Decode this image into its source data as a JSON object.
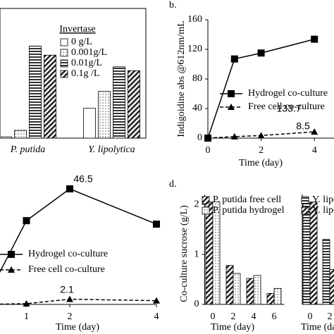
{
  "chart_data": [
    {
      "type": "bar",
      "categories": [
        "P. putida",
        "Y. lipolytica"
      ],
      "legend_title": "Invertase",
      "ylim": [
        0,
        100
      ],
      "series": [
        {
          "name": "0 g/L",
          "color": "#000000",
          "pattern": "none",
          "values": [
            1,
            23
          ]
        },
        {
          "name": "0.001g/L",
          "color": "#000000",
          "pattern": "dots",
          "values": [
            6,
            36
          ]
        },
        {
          "name": "0.01g/L",
          "color": "#000000",
          "pattern": "horizontal",
          "values": [
            71,
            55
          ]
        },
        {
          "name": "0.1g /L",
          "color": "#000000",
          "pattern": "diagonal",
          "values": [
            64,
            52
          ]
        }
      ]
    },
    {
      "type": "line",
      "panel_label": "b.",
      "ylabel": "Indigoidine abs @612nm/mL",
      "xlabel": "Time (day)",
      "x": [
        0,
        1,
        2,
        4
      ],
      "xlim": [
        0,
        5
      ],
      "xticks": [
        0,
        2,
        4
      ],
      "ylim": [
        0,
        160
      ],
      "yticks": [
        0,
        40,
        80,
        120,
        160
      ],
      "series": [
        {
          "name": "Hydrogel co-culture",
          "color": "#000000",
          "marker": "square",
          "dash": false,
          "labeled_index": 3,
          "values": [
            0,
            107,
            115,
            133.7
          ]
        },
        {
          "name": "Free cell co-culture",
          "color": "#000000",
          "marker": "triangle",
          "dash": true,
          "labeled_index": 3,
          "values": [
            0,
            2,
            3.5,
            8.5
          ]
        }
      ]
    },
    {
      "type": "line",
      "xlabel": "Time (day)",
      "x": [
        0,
        1,
        2,
        4
      ],
      "xlim": [
        0,
        4
      ],
      "xticks": [
        1,
        2,
        4
      ],
      "ylim": [
        0,
        57
      ],
      "series": [
        {
          "name": "Hydrogel co-culture",
          "color": "#000000",
          "marker": "square",
          "dash": false,
          "labeled_index": 2,
          "values": [
            0,
            33.7,
            46.5,
            32.3
          ]
        },
        {
          "name": "Free cell co-culture",
          "color": "#000000",
          "marker": "triangle",
          "dash": true,
          "labeled_index": 2,
          "values": [
            0,
            0.3,
            2.1,
            1.5
          ]
        }
      ]
    },
    {
      "type": "bar",
      "panel_label": "d.",
      "ylabel": "Co-culture sucrose (g/L)",
      "xlabel": "Time (day)",
      "categories": [
        "0",
        "2",
        "4",
        "6"
      ],
      "ylim": [
        0,
        2.2
      ],
      "yticks": [
        0,
        1,
        2
      ],
      "series": [
        {
          "name": "P. putida free cell",
          "color": "#000000",
          "pattern": "diagonal",
          "values": [
            2.05,
            0.78,
            0.52,
            0.22
          ]
        },
        {
          "name": "P. putida hydrogel",
          "color": "#000000",
          "pattern": "dots",
          "values": [
            2.05,
            0.62,
            0.58,
            0.32
          ]
        }
      ]
    },
    {
      "type": "bar",
      "xlabel": "Time (day)",
      "categories": [
        "0",
        "2"
      ],
      "ylim": [
        0,
        2.2
      ],
      "series": [
        {
          "name": "Y. lipolytica free cell",
          "color": "#000000",
          "pattern": "horizontal",
          "values": [
            2.05,
            1.3
          ]
        },
        {
          "name": "Y. lipolytica hydrogel",
          "color": "#000000",
          "pattern": "diagonal",
          "values": [
            2.05,
            0.7
          ]
        }
      ]
    }
  ]
}
